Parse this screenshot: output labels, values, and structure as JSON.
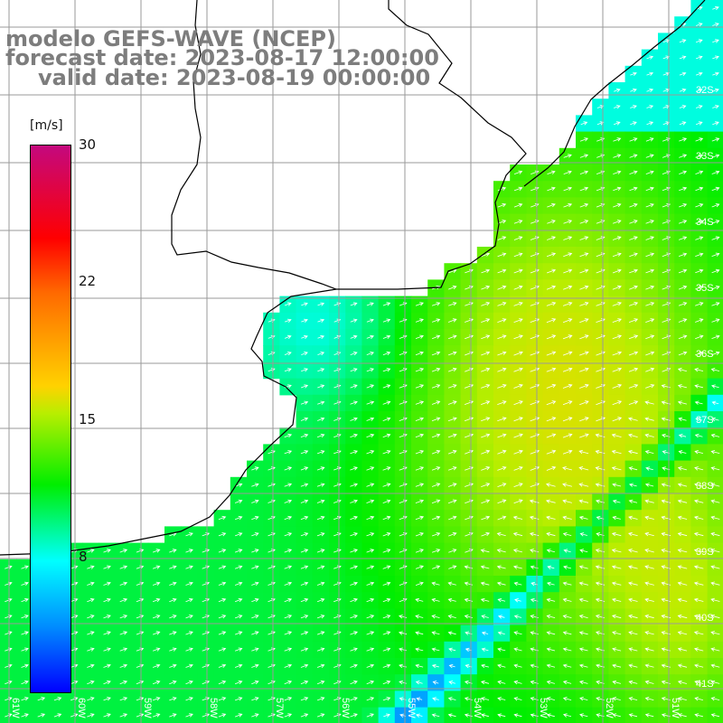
{
  "title": {
    "line1": "modelo GEFS-WAVE (NCEP)",
    "line2": "forecast date: 2023-08-17 12:00:00",
    "line3": "valid date: 2023-08-19 00:00:00"
  },
  "colorbar": {
    "unit": "[m/s]",
    "ticks": [
      "30",
      "22",
      "15",
      "8"
    ],
    "stops": [
      "#c4087e",
      "#ff0000",
      "#ff6a00",
      "#ffd200",
      "#b8ee00",
      "#00ee00",
      "#00ffff",
      "#008cff",
      "#0000ff"
    ]
  },
  "grid": {
    "lat_labels": [
      "32S",
      "33S",
      "34S",
      "35S",
      "36S",
      "37S",
      "38S",
      "39S",
      "40S",
      "41S"
    ],
    "lon_labels": [
      "61W",
      "60W",
      "59W",
      "58W",
      "57W",
      "56W",
      "55W",
      "54W",
      "53W",
      "52W",
      "51W"
    ]
  },
  "field": {
    "variable": "wind speed",
    "units": "m/s",
    "arrow_color": "#ffffff",
    "coastline_color": "#000000",
    "grid_color": "#9a9a9a"
  }
}
